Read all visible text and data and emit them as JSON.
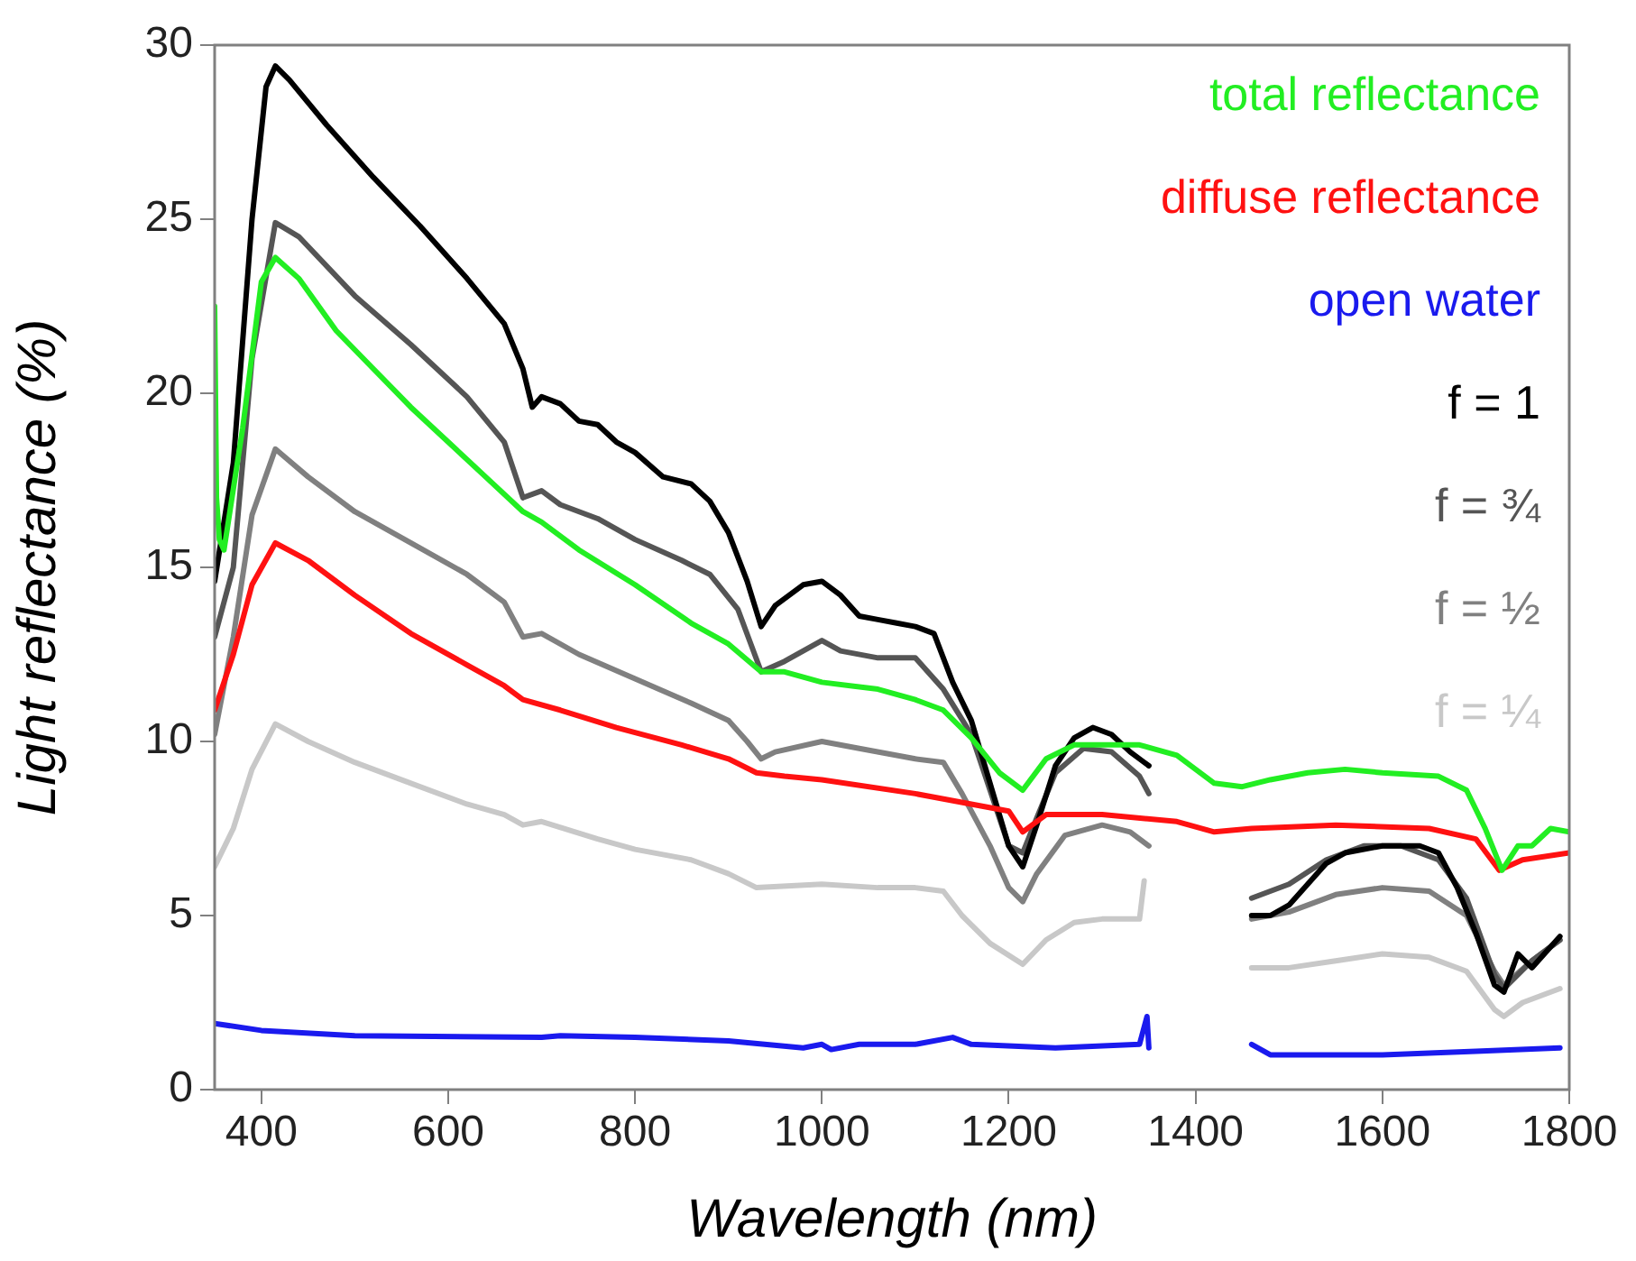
{
  "chart_data": {
    "type": "line",
    "xlabel": "Wavelength (nm)",
    "ylabel": "Light reflectance (%)",
    "xlim": [
      350,
      1800
    ],
    "xticks": [
      400,
      600,
      800,
      1000,
      1200,
      1400,
      1600,
      1800
    ],
    "ylim": [
      0,
      30
    ],
    "yticks": [
      0,
      5,
      10,
      15,
      20,
      25,
      30
    ],
    "grid": false,
    "legend": "top right",
    "marker": "none",
    "line_style": "solid",
    "series": [
      {
        "name": "total reflectance",
        "color": "#22ee22",
        "x": [
          350,
          352,
          355,
          360,
          380,
          400,
          415,
          440,
          480,
          520,
          560,
          600,
          640,
          680,
          700,
          740,
          800,
          860,
          900,
          935,
          960,
          1000,
          1060,
          1100,
          1130,
          1160,
          1190,
          1215,
          1240,
          1270,
          1300,
          1340,
          1380,
          1420,
          1450,
          1480,
          1520,
          1560,
          1600,
          1660,
          1690,
          1710,
          1728,
          1745,
          1760,
          1780,
          1800
        ],
        "values": [
          22.5,
          17,
          15.8,
          15.5,
          19,
          23.2,
          23.9,
          23.3,
          21.8,
          20.7,
          19.6,
          18.6,
          17.6,
          16.6,
          16.3,
          15.5,
          14.5,
          13.4,
          12.8,
          12.0,
          12.0,
          11.7,
          11.5,
          11.2,
          10.9,
          10.1,
          9.1,
          8.6,
          9.5,
          9.9,
          9.9,
          9.9,
          9.6,
          8.8,
          8.7,
          8.9,
          9.1,
          9.2,
          9.1,
          9.0,
          8.6,
          7.5,
          6.3,
          7.0,
          7.0,
          7.5,
          7.4
        ]
      },
      {
        "name": "diffuse reflectance",
        "color": "#ff1111",
        "x": [
          350,
          370,
          390,
          415,
          450,
          500,
          560,
          620,
          660,
          680,
          720,
          780,
          850,
          900,
          930,
          960,
          1000,
          1100,
          1200,
          1215,
          1240,
          1300,
          1380,
          1420,
          1460,
          1550,
          1650,
          1700,
          1725,
          1750,
          1800
        ],
        "values": [
          10.9,
          12.5,
          14.5,
          15.7,
          15.2,
          14.2,
          13.1,
          12.2,
          11.6,
          11.2,
          10.9,
          10.4,
          9.9,
          9.5,
          9.1,
          9.0,
          8.9,
          8.5,
          8.0,
          7.4,
          7.9,
          7.9,
          7.7,
          7.4,
          7.5,
          7.6,
          7.5,
          7.2,
          6.3,
          6.6,
          6.8
        ]
      },
      {
        "name": "open water",
        "color": "#1a1aee",
        "x": [
          350,
          400,
          500,
          700,
          720,
          800,
          900,
          980,
          1000,
          1010,
          1040,
          1100,
          1140,
          1160,
          1250,
          1340,
          1348,
          1350,
          1400,
          1460,
          1480,
          1600,
          1700,
          1790
        ],
        "values": [
          1.9,
          1.7,
          1.55,
          1.5,
          1.55,
          1.5,
          1.4,
          1.2,
          1.3,
          1.15,
          1.3,
          1.3,
          1.5,
          1.3,
          1.2,
          1.3,
          2.1,
          1.2,
          null,
          1.3,
          1.0,
          1.0,
          1.1,
          1.2
        ]
      },
      {
        "name": "f = 1",
        "color": "#000000",
        "x": [
          350,
          370,
          390,
          405,
          415,
          430,
          470,
          520,
          570,
          620,
          660,
          680,
          690,
          700,
          720,
          740,
          760,
          780,
          800,
          830,
          860,
          880,
          900,
          920,
          935,
          950,
          980,
          1000,
          1020,
          1040,
          1060,
          1080,
          1100,
          1120,
          1140,
          1160,
          1180,
          1200,
          1215,
          1230,
          1250,
          1270,
          1290,
          1310,
          1330,
          1350,
          1400,
          1460,
          1480,
          1500,
          1520,
          1540,
          1560,
          1600,
          1640,
          1660,
          1680,
          1700,
          1720,
          1730,
          1745,
          1760,
          1780,
          1790
        ],
        "values": [
          14.6,
          18,
          25,
          28.8,
          29.4,
          29,
          27.7,
          26.2,
          24.8,
          23.3,
          22,
          20.7,
          19.6,
          19.9,
          19.7,
          19.2,
          19.1,
          18.6,
          18.3,
          17.6,
          17.4,
          16.9,
          16.0,
          14.6,
          13.3,
          13.9,
          14.5,
          14.6,
          14.2,
          13.6,
          13.5,
          13.4,
          13.3,
          13.1,
          11.7,
          10.6,
          8.8,
          7.0,
          6.4,
          7.6,
          9.3,
          10.1,
          10.4,
          10.2,
          9.7,
          9.3,
          null,
          5.0,
          5.0,
          5.3,
          5.9,
          6.5,
          6.8,
          7.0,
          7.0,
          6.8,
          5.8,
          4.5,
          3.0,
          2.8,
          3.9,
          3.5,
          4.1,
          4.4
        ]
      },
      {
        "name": "f = ¾",
        "color": "#555555",
        "x": [
          350,
          370,
          390,
          415,
          440,
          500,
          560,
          620,
          660,
          680,
          700,
          720,
          760,
          800,
          850,
          880,
          910,
          935,
          960,
          1000,
          1020,
          1060,
          1100,
          1130,
          1160,
          1180,
          1200,
          1215,
          1230,
          1250,
          1280,
          1310,
          1340,
          1350,
          1400,
          1460,
          1500,
          1540,
          1580,
          1620,
          1660,
          1690,
          1720,
          1730,
          1760,
          1790
        ],
        "values": [
          13,
          15,
          21,
          24.9,
          24.5,
          22.8,
          21.4,
          19.9,
          18.6,
          17.0,
          17.2,
          16.8,
          16.4,
          15.8,
          15.2,
          14.8,
          13.8,
          12.0,
          12.3,
          12.9,
          12.6,
          12.4,
          12.4,
          11.5,
          10.2,
          8.6,
          7.0,
          6.8,
          7.8,
          9.1,
          9.8,
          9.7,
          9.0,
          8.5,
          null,
          5.5,
          5.9,
          6.6,
          7.0,
          7.0,
          6.6,
          5.5,
          3.3,
          2.9,
          3.7,
          4.3
        ]
      },
      {
        "name": "f = ½",
        "color": "#808080",
        "x": [
          350,
          370,
          390,
          415,
          450,
          500,
          560,
          620,
          660,
          680,
          700,
          740,
          800,
          860,
          900,
          920,
          935,
          950,
          1000,
          1040,
          1100,
          1130,
          1150,
          1180,
          1200,
          1215,
          1230,
          1260,
          1300,
          1330,
          1350,
          1400,
          1460,
          1500,
          1550,
          1600,
          1650,
          1690,
          1720,
          1730,
          1760,
          1790
        ],
        "values": [
          10.2,
          13,
          16.5,
          18.4,
          17.6,
          16.6,
          15.7,
          14.8,
          14.0,
          13.0,
          13.1,
          12.5,
          11.8,
          11.1,
          10.6,
          10.0,
          9.5,
          9.7,
          10.0,
          9.8,
          9.5,
          9.4,
          8.5,
          7.0,
          5.8,
          5.4,
          6.2,
          7.3,
          7.6,
          7.4,
          7.0,
          null,
          4.9,
          5.1,
          5.6,
          5.8,
          5.7,
          5.0,
          3.4,
          3.0,
          3.7,
          4.3
        ]
      },
      {
        "name": "f = ¼",
        "color": "#c8c8c8",
        "x": [
          350,
          370,
          390,
          415,
          450,
          500,
          560,
          620,
          660,
          680,
          700,
          760,
          800,
          860,
          900,
          930,
          1000,
          1060,
          1100,
          1130,
          1150,
          1180,
          1215,
          1240,
          1270,
          1300,
          1340,
          1345,
          1400,
          1460,
          1500,
          1550,
          1600,
          1650,
          1690,
          1720,
          1730,
          1750,
          1790
        ],
        "values": [
          6.4,
          7.5,
          9.2,
          10.5,
          10.0,
          9.4,
          8.8,
          8.2,
          7.9,
          7.6,
          7.7,
          7.2,
          6.9,
          6.6,
          6.2,
          5.8,
          5.9,
          5.8,
          5.8,
          5.7,
          5.0,
          4.2,
          3.6,
          4.3,
          4.8,
          4.9,
          4.9,
          6.0,
          null,
          3.5,
          3.5,
          3.7,
          3.9,
          3.8,
          3.4,
          2.3,
          2.1,
          2.5,
          2.9
        ]
      }
    ]
  }
}
